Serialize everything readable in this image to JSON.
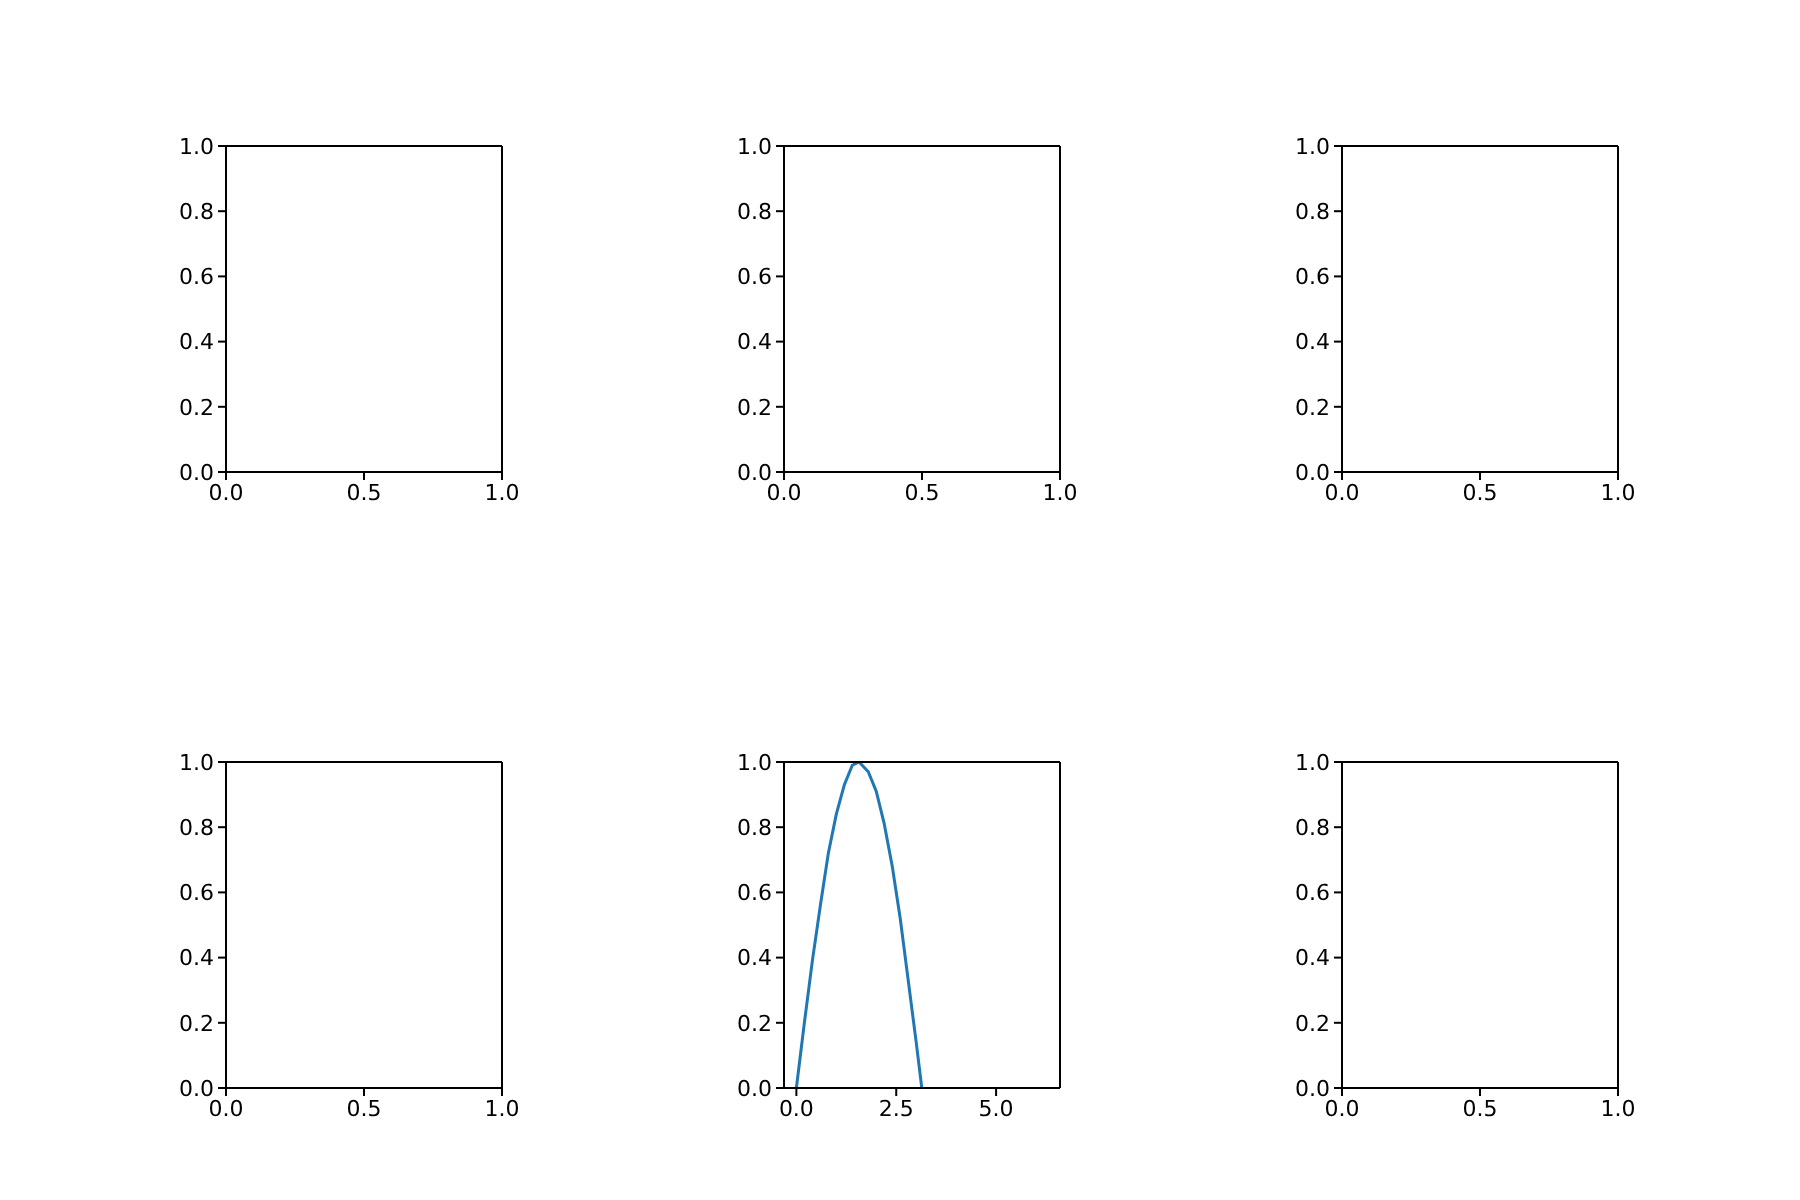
{
  "chart_data": [
    {
      "type": "line",
      "xlim": [
        0,
        1
      ],
      "ylim": [
        0,
        1
      ],
      "xticks": [
        {
          "value": 0,
          "label": "0.0"
        },
        {
          "value": 0.5,
          "label": "0.5"
        },
        {
          "value": 1,
          "label": "1.0"
        }
      ],
      "yticks": [
        {
          "value": 0,
          "label": "0.0"
        },
        {
          "value": 0.2,
          "label": "0.2"
        },
        {
          "value": 0.4,
          "label": "0.4"
        },
        {
          "value": 0.6,
          "label": "0.6"
        },
        {
          "value": 0.8,
          "label": "0.8"
        },
        {
          "value": 1,
          "label": "1.0"
        }
      ]
    },
    {
      "type": "line",
      "xlim": [
        0,
        1
      ],
      "ylim": [
        0,
        1
      ],
      "xticks": [
        {
          "value": 0,
          "label": "0.0"
        },
        {
          "value": 0.5,
          "label": "0.5"
        },
        {
          "value": 1,
          "label": "1.0"
        }
      ],
      "yticks": [
        {
          "value": 0,
          "label": "0.0"
        },
        {
          "value": 0.2,
          "label": "0.2"
        },
        {
          "value": 0.4,
          "label": "0.4"
        },
        {
          "value": 0.6,
          "label": "0.6"
        },
        {
          "value": 0.8,
          "label": "0.8"
        },
        {
          "value": 1,
          "label": "1.0"
        }
      ]
    },
    {
      "type": "line",
      "xlim": [
        0,
        1
      ],
      "ylim": [
        0,
        1
      ],
      "xticks": [
        {
          "value": 0,
          "label": "0.0"
        },
        {
          "value": 0.5,
          "label": "0.5"
        },
        {
          "value": 1,
          "label": "1.0"
        }
      ],
      "yticks": [
        {
          "value": 0,
          "label": "0.0"
        },
        {
          "value": 0.2,
          "label": "0.2"
        },
        {
          "value": 0.4,
          "label": "0.4"
        },
        {
          "value": 0.6,
          "label": "0.6"
        },
        {
          "value": 0.8,
          "label": "0.8"
        },
        {
          "value": 1,
          "label": "1.0"
        }
      ]
    },
    {
      "type": "line",
      "xlim": [
        0,
        1
      ],
      "ylim": [
        0,
        1
      ],
      "xticks": [
        {
          "value": 0,
          "label": "0.0"
        },
        {
          "value": 0.5,
          "label": "0.5"
        },
        {
          "value": 1,
          "label": "1.0"
        }
      ],
      "yticks": [
        {
          "value": 0,
          "label": "0.0"
        },
        {
          "value": 0.2,
          "label": "0.2"
        },
        {
          "value": 0.4,
          "label": "0.4"
        },
        {
          "value": 0.6,
          "label": "0.6"
        },
        {
          "value": 0.8,
          "label": "0.8"
        },
        {
          "value": 1,
          "label": "1.0"
        }
      ]
    },
    {
      "type": "line",
      "xlim": [
        -0.31,
        6.6
      ],
      "ylim": [
        0,
        1
      ],
      "xticks": [
        {
          "value": 0,
          "label": "0.0"
        },
        {
          "value": 2.5,
          "label": "2.5"
        },
        {
          "value": 5,
          "label": "5.0"
        }
      ],
      "yticks": [
        {
          "value": 0,
          "label": "0.0"
        },
        {
          "value": 0.2,
          "label": "0.2"
        },
        {
          "value": 0.4,
          "label": "0.4"
        },
        {
          "value": 0.6,
          "label": "0.6"
        },
        {
          "value": 0.8,
          "label": "0.8"
        },
        {
          "value": 1,
          "label": "1.0"
        }
      ],
      "series": [
        {
          "color": "#1f77b4",
          "x": [
            0,
            0.2,
            0.4,
            0.6,
            0.8,
            1.0,
            1.2,
            1.4,
            1.57,
            1.8,
            2.0,
            2.2,
            2.4,
            2.6,
            2.8,
            3.0,
            3.14
          ],
          "values": [
            0,
            0.2,
            0.39,
            0.56,
            0.72,
            0.84,
            0.93,
            0.99,
            1,
            0.97,
            0.91,
            0.81,
            0.68,
            0.52,
            0.33,
            0.14,
            0
          ]
        }
      ]
    },
    {
      "type": "line",
      "xlim": [
        0,
        1
      ],
      "ylim": [
        0,
        1
      ],
      "xticks": [
        {
          "value": 0,
          "label": "0.0"
        },
        {
          "value": 0.5,
          "label": "0.5"
        },
        {
          "value": 1,
          "label": "1.0"
        }
      ],
      "yticks": [
        {
          "value": 0,
          "label": "0.0"
        },
        {
          "value": 0.2,
          "label": "0.2"
        },
        {
          "value": 0.4,
          "label": "0.4"
        },
        {
          "value": 0.6,
          "label": "0.6"
        },
        {
          "value": 0.8,
          "label": "0.8"
        },
        {
          "value": 1,
          "label": "1.0"
        }
      ]
    }
  ]
}
